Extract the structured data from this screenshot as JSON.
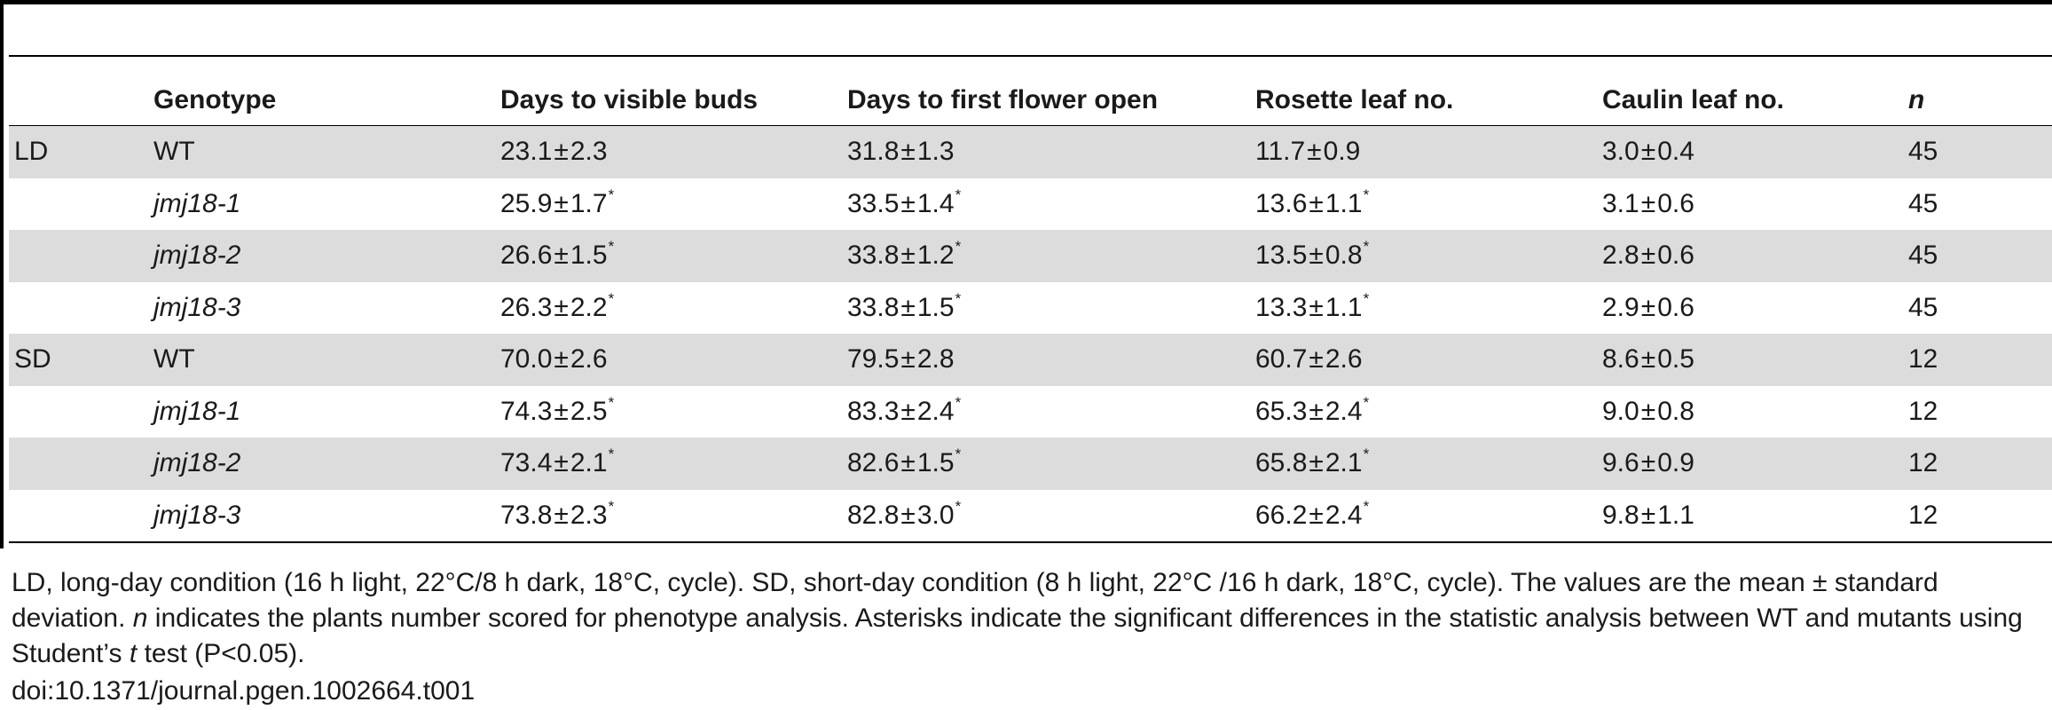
{
  "table": {
    "columns": [
      {
        "key": "condition",
        "label": ""
      },
      {
        "key": "genotype",
        "label": "Genotype"
      },
      {
        "key": "buds",
        "label": "Days to visible buds"
      },
      {
        "key": "flower",
        "label": "Days to first flower open"
      },
      {
        "key": "rosette",
        "label": "Rosette leaf no."
      },
      {
        "key": "caulin",
        "label": "Caulin leaf no."
      },
      {
        "key": "n",
        "label": "n"
      }
    ],
    "rows": [
      {
        "condition": "LD",
        "genotype": "WT",
        "genotype_italic": false,
        "buds": {
          "mean": "23.1",
          "sd": "2.3",
          "sig": false
        },
        "flower": {
          "mean": "31.8",
          "sd": "1.3",
          "sig": false
        },
        "rosette": {
          "mean": "11.7",
          "sd": "0.9",
          "sig": false
        },
        "caulin": {
          "mean": "3.0",
          "sd": "0.4",
          "sig": false
        },
        "n": "45"
      },
      {
        "condition": "",
        "genotype": "jmj18-1",
        "genotype_italic": true,
        "buds": {
          "mean": "25.9",
          "sd": "1.7",
          "sig": true
        },
        "flower": {
          "mean": "33.5",
          "sd": "1.4",
          "sig": true
        },
        "rosette": {
          "mean": "13.6",
          "sd": "1.1",
          "sig": true
        },
        "caulin": {
          "mean": "3.1",
          "sd": "0.6",
          "sig": false
        },
        "n": "45"
      },
      {
        "condition": "",
        "genotype": "jmj18-2",
        "genotype_italic": true,
        "buds": {
          "mean": "26.6",
          "sd": "1.5",
          "sig": true
        },
        "flower": {
          "mean": "33.8",
          "sd": "1.2",
          "sig": true
        },
        "rosette": {
          "mean": "13.5",
          "sd": "0.8",
          "sig": true
        },
        "caulin": {
          "mean": "2.8",
          "sd": "0.6",
          "sig": false
        },
        "n": "45"
      },
      {
        "condition": "",
        "genotype": "jmj18-3",
        "genotype_italic": true,
        "buds": {
          "mean": "26.3",
          "sd": "2.2",
          "sig": true
        },
        "flower": {
          "mean": "33.8",
          "sd": "1.5",
          "sig": true
        },
        "rosette": {
          "mean": "13.3",
          "sd": "1.1",
          "sig": true
        },
        "caulin": {
          "mean": "2.9",
          "sd": "0.6",
          "sig": false
        },
        "n": "45"
      },
      {
        "condition": "SD",
        "genotype": "WT",
        "genotype_italic": false,
        "buds": {
          "mean": "70.0",
          "sd": "2.6",
          "sig": false
        },
        "flower": {
          "mean": "79.5",
          "sd": "2.8",
          "sig": false
        },
        "rosette": {
          "mean": "60.7",
          "sd": "2.6",
          "sig": false
        },
        "caulin": {
          "mean": "8.6",
          "sd": "0.5",
          "sig": false
        },
        "n": "12"
      },
      {
        "condition": "",
        "genotype": "jmj18-1",
        "genotype_italic": true,
        "buds": {
          "mean": "74.3",
          "sd": "2.5",
          "sig": true
        },
        "flower": {
          "mean": "83.3",
          "sd": "2.4",
          "sig": true
        },
        "rosette": {
          "mean": "65.3",
          "sd": "2.4",
          "sig": true
        },
        "caulin": {
          "mean": "9.0",
          "sd": "0.8",
          "sig": false
        },
        "n": "12"
      },
      {
        "condition": "",
        "genotype": "jmj18-2",
        "genotype_italic": true,
        "buds": {
          "mean": "73.4",
          "sd": "2.1",
          "sig": true
        },
        "flower": {
          "mean": "82.6",
          "sd": "1.5",
          "sig": true
        },
        "rosette": {
          "mean": "65.8",
          "sd": "2.1",
          "sig": true
        },
        "caulin": {
          "mean": "9.6",
          "sd": "0.9",
          "sig": false
        },
        "n": "12"
      },
      {
        "condition": "",
        "genotype": "jmj18-3",
        "genotype_italic": true,
        "buds": {
          "mean": "73.8",
          "sd": "2.3",
          "sig": true
        },
        "flower": {
          "mean": "82.8",
          "sd": "3.0",
          "sig": true
        },
        "rosette": {
          "mean": "66.2",
          "sd": "2.4",
          "sig": true
        },
        "caulin": {
          "mean": "9.8",
          "sd": "1.1",
          "sig": false
        },
        "n": "12"
      }
    ],
    "pm_symbol": "±",
    "significance_marker": "*"
  },
  "footnote": {
    "segments": [
      {
        "text": "LD, long-day condition (16 h light, 22°C/8 h dark, 18°C, cycle). SD, short-day condition (8 h light, 22°C /16 h dark, 18°C, cycle). The values are the mean ± standard deviation. ",
        "italic": false
      },
      {
        "text": "n",
        "italic": true
      },
      {
        "text": " indicates the plants number scored for phenotype analysis. Asterisks indicate the significant differences in the statistic analysis between WT and mutants using Student’s ",
        "italic": false
      },
      {
        "text": "t",
        "italic": true
      },
      {
        "text": " test (P<0.05).",
        "italic": false
      }
    ],
    "doi": "doi:10.1371/journal.pgen.1002664.t001"
  }
}
